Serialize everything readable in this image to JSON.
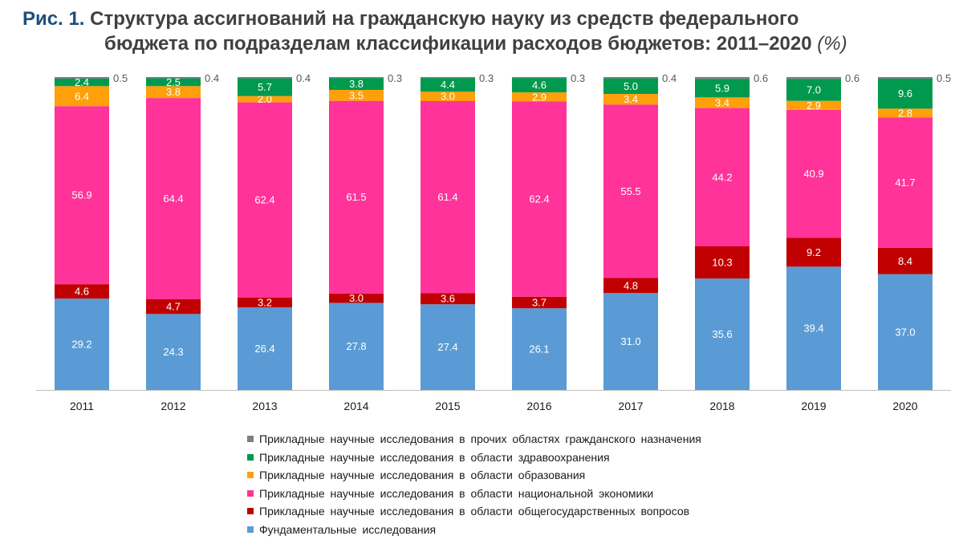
{
  "title": {
    "figure_label": "Рис. 1.",
    "line1": "Структура ассигнований на гражданскую науку из средств федерального",
    "line2": "бюджета по подразделам классификации расходов бюджетов: 2011–2020",
    "unit": "(%)"
  },
  "chart_data": {
    "type": "bar",
    "stacked": true,
    "categories": [
      "2011",
      "2012",
      "2013",
      "2014",
      "2015",
      "2016",
      "2017",
      "2018",
      "2019",
      "2020"
    ],
    "ylim": [
      0,
      100
    ],
    "grid": false,
    "legend_position": "bottom",
    "series": [
      {
        "name": "Фундаментальные исследования",
        "color": "#5b9bd5",
        "values": [
          29.2,
          24.3,
          26.4,
          27.8,
          27.4,
          26.1,
          31.0,
          35.6,
          39.4,
          37.0
        ]
      },
      {
        "name": "Прикладные научные исследования в области общегосударственных вопросов",
        "color": "#c00000",
        "values": [
          4.6,
          4.7,
          3.2,
          3.0,
          3.6,
          3.7,
          4.8,
          10.3,
          9.2,
          8.4
        ]
      },
      {
        "name": "Прикладные научные исследования в области национальной экономики",
        "color": "#ff3399",
        "values": [
          56.9,
          64.4,
          62.4,
          61.5,
          61.4,
          62.4,
          55.5,
          44.2,
          40.9,
          41.7
        ]
      },
      {
        "name": "Прикладные научные исследования в области образования",
        "color": "#ffa00a",
        "values": [
          6.4,
          3.8,
          2.0,
          3.5,
          3.0,
          2.9,
          3.4,
          3.4,
          2.9,
          2.8
        ]
      },
      {
        "name": "Прикладные научные исследования в области здравоохранения",
        "color": "#00994d",
        "values": [
          2.4,
          2.5,
          5.7,
          3.8,
          4.4,
          4.6,
          5.0,
          5.9,
          7.0,
          9.6
        ]
      },
      {
        "name": "Прикладные научные исследования в прочих областях гражданского назначения",
        "color": "#7f7f7f",
        "values": [
          0.5,
          0.4,
          0.4,
          0.3,
          0.3,
          0.3,
          0.4,
          0.6,
          0.6,
          0.5
        ]
      }
    ]
  }
}
